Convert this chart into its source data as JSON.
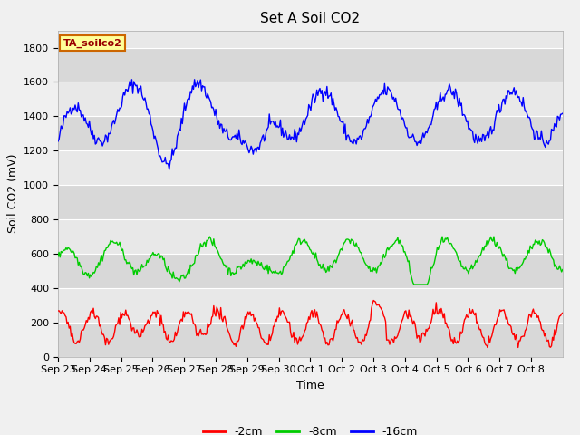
{
  "title": "Set A Soil CO2",
  "ylabel": "Soil CO2 (mV)",
  "xlabel": "Time",
  "legend_label": "TA_soilco2",
  "ylim": [
    0,
    1900
  ],
  "yticks": [
    0,
    200,
    400,
    600,
    800,
    1000,
    1200,
    1400,
    1600,
    1800
  ],
  "xtick_labels": [
    "Sep 23",
    "Sep 24",
    "Sep 25",
    "Sep 26",
    "Sep 27",
    "Sep 28",
    "Sep 29",
    "Sep 30",
    "Oct 1",
    "Oct 2",
    "Oct 3",
    "Oct 4",
    "Oct 5",
    "Oct 6",
    "Oct 7",
    "Oct 8"
  ],
  "line_colors": [
    "#ff0000",
    "#00cc00",
    "#0000ff"
  ],
  "line_labels": [
    "-2cm",
    "-8cm",
    "-16cm"
  ],
  "line_width": 1.0,
  "figure_bg": "#f0f0f0",
  "plot_bg": "#e8e8e8",
  "legend_box_facecolor": "#ffff99",
  "legend_box_edgecolor": "#cc6600",
  "legend_text_color": "#990000",
  "title_fontsize": 11,
  "axis_label_fontsize": 9,
  "tick_fontsize": 8,
  "band_light": "#e8e8e8",
  "band_dark": "#d8d8d8",
  "band_edges": [
    0,
    200,
    400,
    600,
    800,
    1000,
    1200,
    1400,
    1600,
    1800,
    2000
  ]
}
